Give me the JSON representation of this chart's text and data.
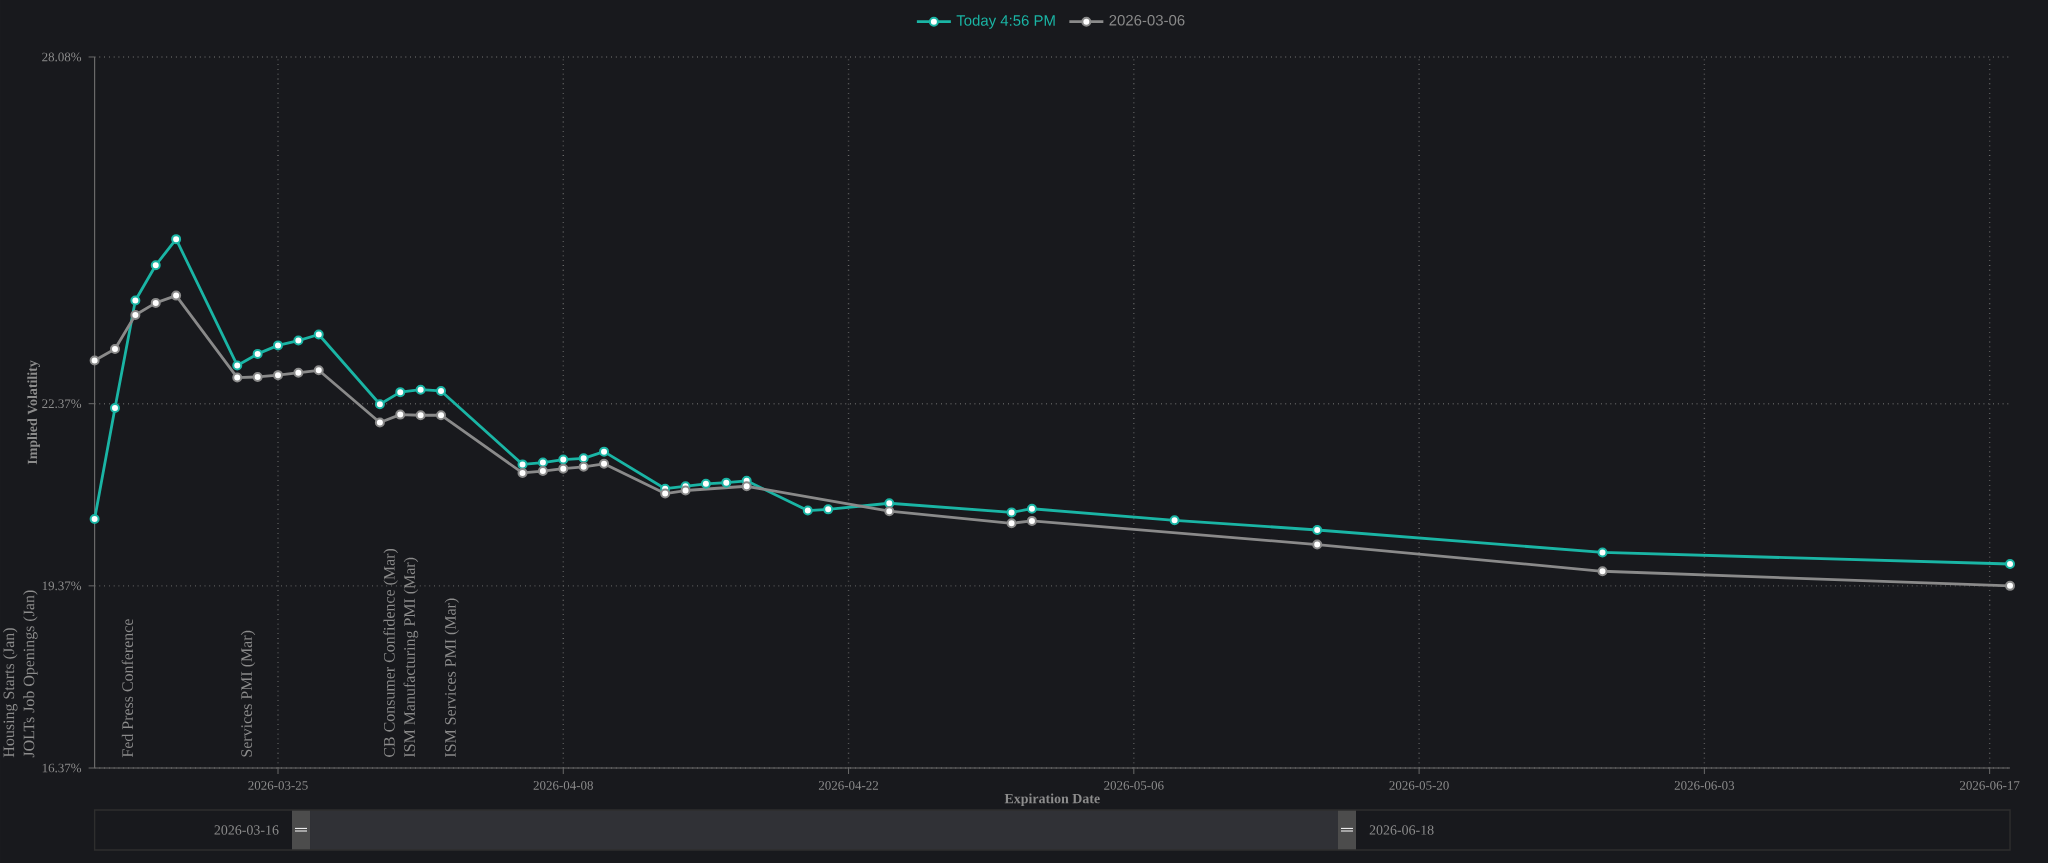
{
  "chart_data": {
    "type": "line",
    "xlabel": "Expiration Date",
    "ylabel": "Implied Volatility",
    "xlim": [
      "2026-03-16",
      "2026-06-18"
    ],
    "ylim": [
      16.37,
      28.08
    ],
    "xticks": [
      "2026-03-25",
      "2026-04-08",
      "2026-04-22",
      "2026-05-06",
      "2026-05-20",
      "2026-06-03",
      "2026-06-17"
    ],
    "yticks": [
      {
        "value": 16.37,
        "label": "16.37%"
      },
      {
        "value": 19.37,
        "label": "19.37%"
      },
      {
        "value": 22.37,
        "label": "22.37%"
      },
      {
        "value": 28.08,
        "label": "28.08%"
      }
    ],
    "grid": true,
    "legend": "top",
    "marker": "circle",
    "series": [
      {
        "name": "Today 4:56 PM",
        "color": "#1ab5a5",
        "x": [
          "2026-03-16",
          "2026-03-17",
          "2026-03-18",
          "2026-03-19",
          "2026-03-20",
          "2026-03-23",
          "2026-03-24",
          "2026-03-25",
          "2026-03-26",
          "2026-03-27",
          "2026-03-30",
          "2026-03-31",
          "2026-04-01",
          "2026-04-02",
          "2026-04-06",
          "2026-04-07",
          "2026-04-08",
          "2026-04-09",
          "2026-04-10",
          "2026-04-13",
          "2026-04-14",
          "2026-04-15",
          "2026-04-16",
          "2026-04-17",
          "2026-04-20",
          "2026-04-21",
          "2026-04-24",
          "2026-04-30",
          "2026-05-01",
          "2026-05-08",
          "2026-05-15",
          "2026-05-29",
          "2026-06-18"
        ],
        "values": [
          20.47,
          22.3,
          24.07,
          24.65,
          25.08,
          23.0,
          23.19,
          23.33,
          23.41,
          23.51,
          22.36,
          22.56,
          22.6,
          22.58,
          21.37,
          21.4,
          21.45,
          21.47,
          21.58,
          20.97,
          21.01,
          21.05,
          21.07,
          21.1,
          20.61,
          20.63,
          20.73,
          20.58,
          20.64,
          20.45,
          20.29,
          19.92,
          19.73
        ]
      },
      {
        "name": "2026-03-06",
        "color": "#8a8a8a",
        "x": [
          "2026-03-16",
          "2026-03-17",
          "2026-03-18",
          "2026-03-19",
          "2026-03-20",
          "2026-03-23",
          "2026-03-24",
          "2026-03-25",
          "2026-03-26",
          "2026-03-27",
          "2026-03-30",
          "2026-03-31",
          "2026-04-01",
          "2026-04-02",
          "2026-04-06",
          "2026-04-07",
          "2026-04-08",
          "2026-04-09",
          "2026-04-10",
          "2026-04-13",
          "2026-04-14",
          "2026-04-17",
          "2026-04-24",
          "2026-04-30",
          "2026-05-01",
          "2026-05-15",
          "2026-05-29",
          "2026-06-18"
        ],
        "values": [
          23.08,
          23.27,
          23.83,
          24.03,
          24.15,
          22.8,
          22.81,
          22.84,
          22.88,
          22.92,
          22.06,
          22.19,
          22.18,
          22.18,
          21.23,
          21.26,
          21.3,
          21.33,
          21.38,
          20.89,
          20.94,
          21.01,
          20.6,
          20.4,
          20.44,
          20.05,
          19.61,
          19.37
        ]
      }
    ],
    "annotations": [
      "Housing Starts (Jan)",
      "JOLTs Job Openings (Jan)",
      "Fed Press Conference",
      "Services PMI (Mar)",
      "CB Consumer Confidence (Mar)",
      "ISM Manufacturing PMI (Mar)",
      "ISM Services PMI (Mar)",
      "2026-03-16",
      "2026-06-18"
    ]
  }
}
